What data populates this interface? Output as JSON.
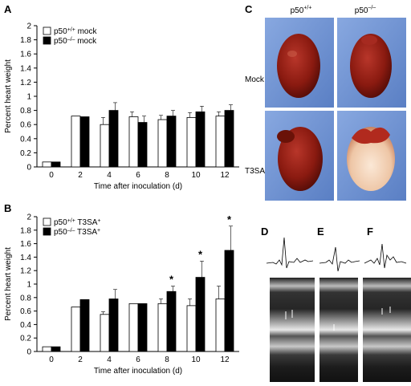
{
  "panels": {
    "A": "A",
    "B": "B",
    "C": "C",
    "D": "D",
    "E": "E",
    "F": "F"
  },
  "photo_grid": {
    "col_labels": [
      "p50+/+",
      "p50–/–"
    ],
    "row_labels": [
      "Mock",
      "T3SA+"
    ]
  },
  "chart_data": [
    {
      "type": "bar",
      "panel": "A",
      "ylabel": "Percent heart weight",
      "xlabel": "Time after inoculation (d)",
      "categories": [
        "0",
        "2",
        "4",
        "6",
        "8",
        "10",
        "12"
      ],
      "ylim": [
        0,
        2
      ],
      "yticks": [
        "0",
        "0.2",
        "0.4",
        "0.6",
        "0.8",
        "1",
        "1.2",
        "1.4",
        "1.6",
        "1.8",
        "2"
      ],
      "series": [
        {
          "name": "p50+/+ mock",
          "fill": "#ffffff",
          "values": [
            0.07,
            0.72,
            0.6,
            0.71,
            0.67,
            0.7,
            0.72
          ],
          "errors": [
            0,
            0,
            0.1,
            0.07,
            0.06,
            0.07,
            0.06
          ]
        },
        {
          "name": "p50–/– mock",
          "fill": "#000000",
          "values": [
            0.07,
            0.71,
            0.8,
            0.63,
            0.72,
            0.78,
            0.8
          ],
          "errors": [
            0,
            0,
            0.11,
            0.09,
            0.08,
            0.08,
            0.08
          ]
        }
      ],
      "significance": [],
      "legend_position": "top-left"
    },
    {
      "type": "bar",
      "panel": "B",
      "ylabel": "Percent heart weight",
      "xlabel": "Time after inoculation (d)",
      "categories": [
        "0",
        "2",
        "4",
        "6",
        "8",
        "10",
        "12"
      ],
      "ylim": [
        0,
        2
      ],
      "yticks": [
        "0",
        "0.2",
        "0.4",
        "0.6",
        "0.8",
        "1",
        "1.2",
        "1.4",
        "1.6",
        "1.8",
        "2"
      ],
      "series": [
        {
          "name": "p50+/+ T3SA+",
          "fill": "#ffffff",
          "values": [
            0.07,
            0.66,
            0.55,
            0.71,
            0.71,
            0.68,
            0.78
          ],
          "errors": [
            0,
            0,
            0.04,
            0,
            0.07,
            0.1,
            0.19
          ]
        },
        {
          "name": "p50–/– T3SA+",
          "fill": "#000000",
          "values": [
            0.07,
            0.77,
            0.78,
            0.71,
            0.89,
            1.1,
            1.5
          ],
          "errors": [
            0,
            0,
            0.14,
            0,
            0.08,
            0.24,
            0.36
          ]
        }
      ],
      "significance": [
        "",
        "",
        "",
        "",
        "*",
        "*",
        "*"
      ],
      "legend_position": "top-left"
    }
  ],
  "colors": {
    "photo_background": "#6a8fd0",
    "heart_red": "#8a1a10",
    "heart_pale": "#f0d2b8",
    "echo_background": "#2a2a2a"
  }
}
